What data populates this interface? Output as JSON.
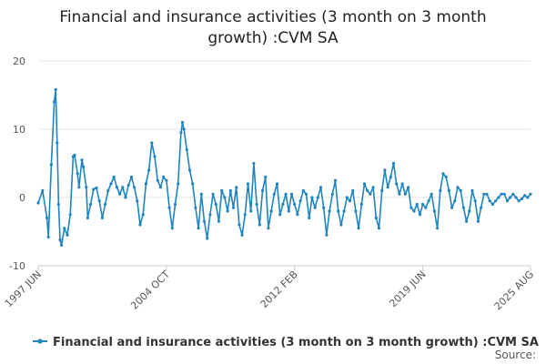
{
  "chart_data": {
    "type": "line",
    "title_line1": "Financial and insurance activities (3 month on 3 month",
    "title_line2": "growth) :CVM SA",
    "ylim": [
      -10,
      20
    ],
    "y_ticks": [
      "20",
      "10",
      "0",
      "-10"
    ],
    "x_ticks": [
      "1997 JUN",
      "2004 OCT",
      "2012 FEB",
      "2019 JUN",
      "2025 AUG"
    ],
    "grid": true,
    "legend_position": "bottom",
    "source_label": "Source:",
    "colors": {
      "series": "#1f84c0",
      "grid": "#e6e6e6"
    },
    "x_range": [
      "1997-06",
      "2025-08"
    ],
    "series": [
      {
        "name": "Financial and insurance activities (3 month on 3 month growth) :CVM SA",
        "points": [
          [
            "1997-06",
            -0.8
          ],
          [
            "1997-09",
            1.0
          ],
          [
            "1997-12",
            -3.0
          ],
          [
            "1998-01",
            -5.8
          ],
          [
            "1998-03",
            4.8
          ],
          [
            "1998-05",
            14.0
          ],
          [
            "1998-06",
            15.8
          ],
          [
            "1998-07",
            8.0
          ],
          [
            "1998-08",
            -1.0
          ],
          [
            "1998-09",
            -6.2
          ],
          [
            "1998-10",
            -7.0
          ],
          [
            "1998-12",
            -4.5
          ],
          [
            "1999-02",
            -5.5
          ],
          [
            "1999-04",
            -2.5
          ],
          [
            "1999-06",
            6.0
          ],
          [
            "1999-07",
            6.2
          ],
          [
            "1999-09",
            3.5
          ],
          [
            "1999-10",
            1.5
          ],
          [
            "1999-12",
            5.5
          ],
          [
            "2000-01",
            4.5
          ],
          [
            "2000-03",
            1.5
          ],
          [
            "2000-04",
            -3.0
          ],
          [
            "2000-06",
            -1.0
          ],
          [
            "2000-08",
            1.2
          ],
          [
            "2000-10",
            1.4
          ],
          [
            "2000-12",
            -0.5
          ],
          [
            "2001-02",
            -3.0
          ],
          [
            "2001-04",
            -1.0
          ],
          [
            "2001-06",
            1.0
          ],
          [
            "2001-08",
            2.0
          ],
          [
            "2001-10",
            3.0
          ],
          [
            "2001-12",
            1.5
          ],
          [
            "2002-02",
            0.5
          ],
          [
            "2002-04",
            1.5
          ],
          [
            "2002-06",
            0.0
          ],
          [
            "2002-08",
            1.8
          ],
          [
            "2002-10",
            3.0
          ],
          [
            "2002-12",
            1.5
          ],
          [
            "2003-02",
            -0.5
          ],
          [
            "2003-04",
            -4.0
          ],
          [
            "2003-06",
            -2.5
          ],
          [
            "2003-08",
            2.0
          ],
          [
            "2003-10",
            4.0
          ],
          [
            "2003-12",
            8.0
          ],
          [
            "2004-02",
            6.0
          ],
          [
            "2004-04",
            2.5
          ],
          [
            "2004-06",
            1.5
          ],
          [
            "2004-08",
            3.0
          ],
          [
            "2004-10",
            2.5
          ],
          [
            "2004-12",
            -1.5
          ],
          [
            "2005-02",
            -4.5
          ],
          [
            "2005-04",
            -1.0
          ],
          [
            "2005-06",
            2.0
          ],
          [
            "2005-08",
            9.5
          ],
          [
            "2005-09",
            11.0
          ],
          [
            "2005-10",
            10.0
          ],
          [
            "2005-12",
            7.0
          ],
          [
            "2006-02",
            4.0
          ],
          [
            "2006-04",
            2.0
          ],
          [
            "2006-06",
            -1.5
          ],
          [
            "2006-08",
            -4.5
          ],
          [
            "2006-10",
            0.5
          ],
          [
            "2006-12",
            -3.5
          ],
          [
            "2007-02",
            -6.0
          ],
          [
            "2007-04",
            -2.5
          ],
          [
            "2007-06",
            0.5
          ],
          [
            "2007-08",
            -1.0
          ],
          [
            "2007-10",
            -3.5
          ],
          [
            "2007-12",
            1.0
          ],
          [
            "2008-02",
            0.0
          ],
          [
            "2008-04",
            -2.0
          ],
          [
            "2008-06",
            1.0
          ],
          [
            "2008-08",
            -1.5
          ],
          [
            "2008-10",
            1.5
          ],
          [
            "2008-12",
            -4.0
          ],
          [
            "2009-02",
            -5.5
          ],
          [
            "2009-04",
            -2.5
          ],
          [
            "2009-06",
            2.0
          ],
          [
            "2009-08",
            -2.0
          ],
          [
            "2009-10",
            5.0
          ],
          [
            "2009-12",
            -1.0
          ],
          [
            "2010-02",
            -4.0
          ],
          [
            "2010-04",
            1.0
          ],
          [
            "2010-06",
            3.0
          ],
          [
            "2010-08",
            -4.5
          ],
          [
            "2010-10",
            -2.0
          ],
          [
            "2010-12",
            0.5
          ],
          [
            "2011-02",
            2.0
          ],
          [
            "2011-04",
            -2.5
          ],
          [
            "2011-06",
            -1.0
          ],
          [
            "2011-08",
            0.5
          ],
          [
            "2011-10",
            -2.0
          ],
          [
            "2011-12",
            0.5
          ],
          [
            "2012-02",
            -1.0
          ],
          [
            "2012-04",
            -2.5
          ],
          [
            "2012-06",
            -0.5
          ],
          [
            "2012-08",
            1.0
          ],
          [
            "2012-10",
            0.5
          ],
          [
            "2012-12",
            -3.0
          ],
          [
            "2013-02",
            0.0
          ],
          [
            "2013-04",
            -1.5
          ],
          [
            "2013-06",
            0.0
          ],
          [
            "2013-08",
            1.5
          ],
          [
            "2013-10",
            -1.5
          ],
          [
            "2013-12",
            -5.5
          ],
          [
            "2014-02",
            -2.0
          ],
          [
            "2014-04",
            0.5
          ],
          [
            "2014-06",
            2.5
          ],
          [
            "2014-08",
            -2.0
          ],
          [
            "2014-10",
            -4.0
          ],
          [
            "2014-12",
            -2.0
          ],
          [
            "2015-02",
            0.0
          ],
          [
            "2015-04",
            -0.5
          ],
          [
            "2015-06",
            1.0
          ],
          [
            "2015-08",
            -2.0
          ],
          [
            "2015-10",
            -4.5
          ],
          [
            "2015-12",
            -1.0
          ],
          [
            "2016-02",
            2.0
          ],
          [
            "2016-04",
            1.0
          ],
          [
            "2016-06",
            0.5
          ],
          [
            "2016-08",
            1.5
          ],
          [
            "2016-10",
            -3.0
          ],
          [
            "2016-12",
            -4.5
          ],
          [
            "2017-02",
            1.0
          ],
          [
            "2017-04",
            4.0
          ],
          [
            "2017-06",
            1.5
          ],
          [
            "2017-08",
            3.0
          ],
          [
            "2017-10",
            5.0
          ],
          [
            "2017-12",
            2.0
          ],
          [
            "2018-02",
            0.5
          ],
          [
            "2018-04",
            2.0
          ],
          [
            "2018-06",
            0.5
          ],
          [
            "2018-08",
            1.5
          ],
          [
            "2018-10",
            -1.5
          ],
          [
            "2018-12",
            -2.0
          ],
          [
            "2019-02",
            -1.0
          ],
          [
            "2019-04",
            -2.5
          ],
          [
            "2019-06",
            -1.0
          ],
          [
            "2019-08",
            -1.5
          ],
          [
            "2019-10",
            -0.5
          ],
          [
            "2019-12",
            0.5
          ],
          [
            "2020-02",
            -2.0
          ],
          [
            "2020-04",
            -4.5
          ],
          [
            "2020-06",
            1.0
          ],
          [
            "2020-08",
            3.5
          ],
          [
            "2020-10",
            3.0
          ],
          [
            "2020-12",
            1.0
          ],
          [
            "2021-02",
            -1.5
          ],
          [
            "2021-04",
            -0.5
          ],
          [
            "2021-06",
            1.5
          ],
          [
            "2021-08",
            1.0
          ],
          [
            "2021-10",
            -1.5
          ],
          [
            "2021-12",
            -3.5
          ],
          [
            "2022-02",
            -2.0
          ],
          [
            "2022-04",
            1.0
          ],
          [
            "2022-06",
            -0.5
          ],
          [
            "2022-08",
            -3.5
          ],
          [
            "2022-10",
            -1.5
          ],
          [
            "2022-12",
            0.5
          ],
          [
            "2023-02",
            0.5
          ],
          [
            "2023-04",
            -0.5
          ],
          [
            "2023-06",
            -1.0
          ],
          [
            "2023-08",
            -0.5
          ],
          [
            "2023-10",
            0.0
          ],
          [
            "2023-12",
            0.5
          ],
          [
            "2024-02",
            0.5
          ],
          [
            "2024-04",
            -0.5
          ],
          [
            "2024-06",
            0.0
          ],
          [
            "2024-08",
            0.5
          ],
          [
            "2024-10",
            0.0
          ],
          [
            "2024-12",
            -0.5
          ],
          [
            "2025-02",
            -0.2
          ],
          [
            "2025-04",
            0.3
          ],
          [
            "2025-06",
            0.0
          ],
          [
            "2025-08",
            0.5
          ]
        ]
      }
    ]
  }
}
